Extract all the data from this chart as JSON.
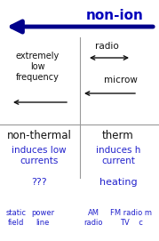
{
  "title": "non-ion",
  "title_color": "#0000BB",
  "bg_color": "#ffffff",
  "main_arrow_color": "#00008B",
  "quadrant_line_color": "#999999",
  "top_left_label": "extremely\nlow\nfrequency",
  "top_right_label1": "radio",
  "top_right_label2": "microw",
  "bottom_left_header": "non-thermal",
  "bottom_left_line1": "induces low\ncurrents",
  "bottom_left_line2": "???",
  "bottom_right_header": "therm",
  "bottom_right_line1": "induces h\ncurrent",
  "bottom_right_line2": "heating",
  "bottom_label0": "static\nfield",
  "bottom_label1": "power\nline",
  "bottom_label2": "AM\nradio",
  "bottom_label3": "FM radio m\nTV    c",
  "text_color_dark": "#111111",
  "text_color_blue": "#2222CC"
}
